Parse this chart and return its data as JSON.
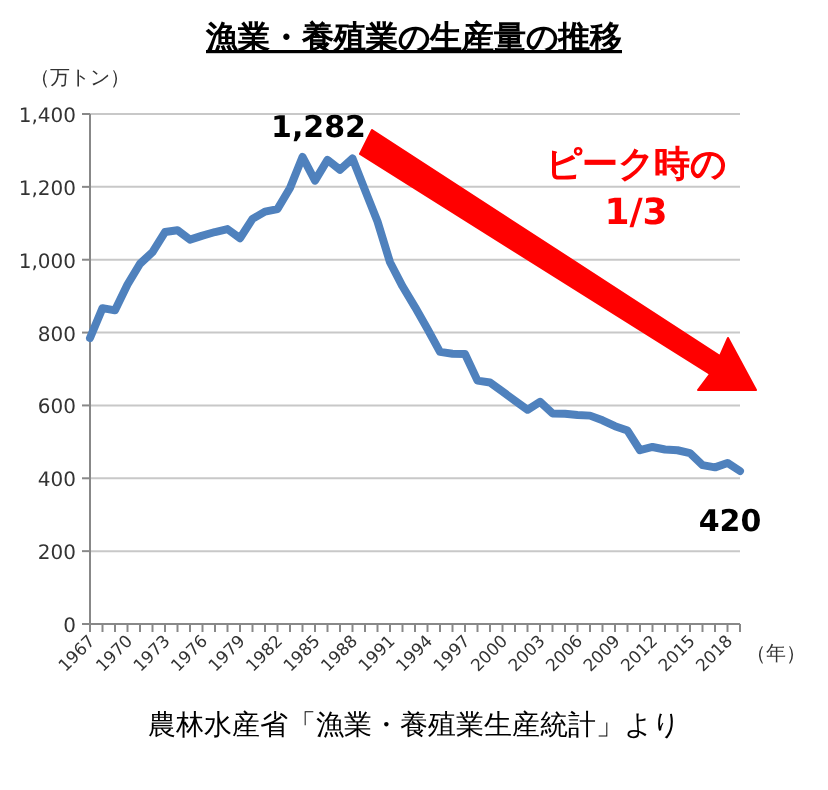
{
  "chart_data": {
    "type": "line",
    "title": "漁業・養殖業の生産量の推移",
    "ylabel": "（万トン）",
    "xlabel": "（年）",
    "categories": [
      "1967",
      null,
      null,
      "1970",
      null,
      null,
      "1973",
      null,
      null,
      "1976",
      null,
      null,
      "1979",
      null,
      null,
      "1982",
      null,
      null,
      "1985",
      null,
      null,
      "1988",
      null,
      null,
      "1991",
      null,
      null,
      "1994",
      null,
      null,
      "1997",
      null,
      null,
      "2000",
      null,
      null,
      "2003",
      null,
      null,
      "2006",
      null,
      null,
      "2009",
      null,
      null,
      "2012",
      null,
      null,
      "2015",
      null,
      null,
      "2018",
      null
    ],
    "series": [
      {
        "color": "#4f81bd",
        "values": [
          785,
          867,
          861,
          932,
          989,
          1021,
          1076,
          1081,
          1055,
          1066,
          1076,
          1084,
          1059,
          1112,
          1132,
          1139,
          1197,
          1282,
          1217,
          1274,
          1247,
          1278,
          1191,
          1105,
          993,
          927,
          870,
          810,
          747,
          742,
          741,
          668,
          663,
          638,
          613,
          588,
          610,
          578,
          577,
          574,
          572,
          559,
          543,
          531,
          477,
          486,
          479,
          477,
          469,
          436,
          430,
          442,
          420
        ]
      }
    ],
    "ylim": [
      0,
      1400
    ],
    "yticks": [
      0,
      {
        "value": 200,
        "label": "200"
      },
      {
        "value": 400,
        "label": "400"
      },
      {
        "value": 600,
        "label": "600"
      },
      {
        "value": 800,
        "label": "800"
      },
      {
        "value": 1000,
        "label": "1,000"
      },
      {
        "value": 1200,
        "label": "1,200"
      },
      {
        "value": 1400,
        "label": "1,400"
      }
    ],
    "grid": "y",
    "marker": "none",
    "line_style": "solid",
    "annotations": [
      "1,282",
      {
        "text": "420",
        "y": 420
      },
      "ピーク時の\n1/3",
      "農林水産省「漁業・養殖業生産統計」より"
    ]
  }
}
